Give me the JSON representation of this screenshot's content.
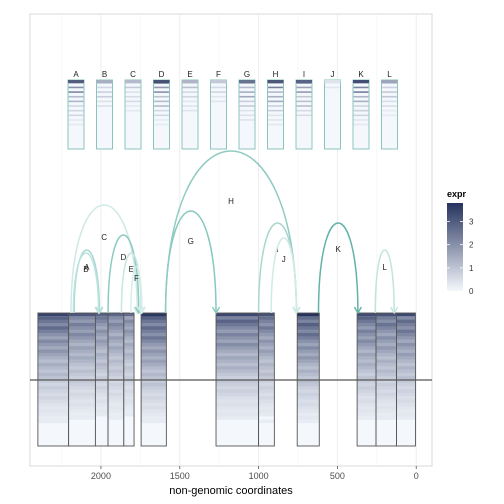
{
  "chart_data": {
    "type": "sashimi",
    "xlabel": "non-genomic coordinates",
    "x_reversed": true,
    "xlim": [
      2450,
      -100
    ],
    "x_ticks": [
      2000,
      1500,
      1000,
      500,
      0
    ],
    "x_tick_labels": [
      "2000",
      "1500",
      "1000",
      "500",
      "0"
    ],
    "grid": true,
    "legend": {
      "title": "expr",
      "position": "right",
      "min": 0,
      "max": 3.8,
      "ticks": [
        0,
        1,
        2,
        3
      ],
      "tick_labels": [
        "0",
        "1",
        "2",
        "3"
      ],
      "color_low": "#f4f8fd",
      "color_high": "#26335e"
    },
    "exons": [
      {
        "start": 2400,
        "end": 2205,
        "top_level": 3.2
      },
      {
        "start": 2205,
        "end": 2035,
        "top_level": 2.8
      },
      {
        "start": 2035,
        "end": 1955,
        "top_level": 2.6
      },
      {
        "start": 1955,
        "end": 1855,
        "top_level": 2.5
      },
      {
        "start": 1855,
        "end": 1790,
        "top_level": 2.4
      },
      {
        "start": 1745,
        "end": 1585,
        "top_level": 3.4
      },
      {
        "start": 1270,
        "end": 1000,
        "top_level": 3.1
      },
      {
        "start": 1000,
        "end": 900,
        "top_level": 2.9
      },
      {
        "start": 755,
        "end": 615,
        "top_level": 3.5
      },
      {
        "start": 375,
        "end": 255,
        "top_level": 3.0
      },
      {
        "start": 255,
        "end": 125,
        "top_level": 2.9
      },
      {
        "start": 125,
        "end": 5,
        "top_level": 3.1
      }
    ],
    "junctions": [
      {
        "label": "A",
        "from": 2170,
        "to": 2010,
        "height": 1.0,
        "color": "#a6d8d1"
      },
      {
        "label": "B",
        "from": 2175,
        "to": 2015,
        "height": 0.95,
        "color": "#bde3de"
      },
      {
        "label": "C",
        "from": 2190,
        "to": 1770,
        "height": 1.75,
        "color": "#cfe9e5"
      },
      {
        "label": "D",
        "from": 1955,
        "to": 1760,
        "height": 1.25,
        "color": "#8ccbc1"
      },
      {
        "label": "E",
        "from": 1870,
        "to": 1745,
        "height": 0.95,
        "color": "#c6e6e1"
      },
      {
        "label": "F",
        "from": 1810,
        "to": 1740,
        "height": 0.72,
        "color": "#d8eeea"
      },
      {
        "label": "G",
        "from": 1590,
        "to": 1270,
        "height": 1.65,
        "color": "#86c8bd"
      },
      {
        "label": "H",
        "from": 1590,
        "to": 760,
        "height": 2.65,
        "color": "#8fcbc1"
      },
      {
        "label": "I",
        "from": 1000,
        "to": 760,
        "height": 1.45,
        "color": "#a7d7cf"
      },
      {
        "label": "J",
        "from": 920,
        "to": 760,
        "height": 1.2,
        "color": "#d0ebe6"
      },
      {
        "label": "K",
        "from": 620,
        "to": 370,
        "height": 1.45,
        "color": "#62b3a6"
      },
      {
        "label": "L",
        "from": 260,
        "to": 140,
        "height": 1.0,
        "color": "#c2e4de"
      }
    ],
    "samples": [
      {
        "label": "A",
        "level": 3.0
      },
      {
        "label": "B",
        "level": 1.4
      },
      {
        "label": "C",
        "level": 1.2
      },
      {
        "label": "D",
        "level": 3.2
      },
      {
        "label": "E",
        "level": 1.3
      },
      {
        "label": "F",
        "level": 0.9
      },
      {
        "label": "G",
        "level": 2.6
      },
      {
        "label": "H",
        "level": 3.1
      },
      {
        "label": "I",
        "level": 2.9
      },
      {
        "label": "J",
        "level": 0.4
      },
      {
        "label": "K",
        "level": 3.3
      },
      {
        "label": "L",
        "level": 1.6
      }
    ]
  },
  "colors": {
    "exon_border": "#555555",
    "sample_border": "#7fbfb5",
    "baseline": "#555555",
    "grid": "#ebebeb",
    "axis_line": "#c8c8c8"
  }
}
